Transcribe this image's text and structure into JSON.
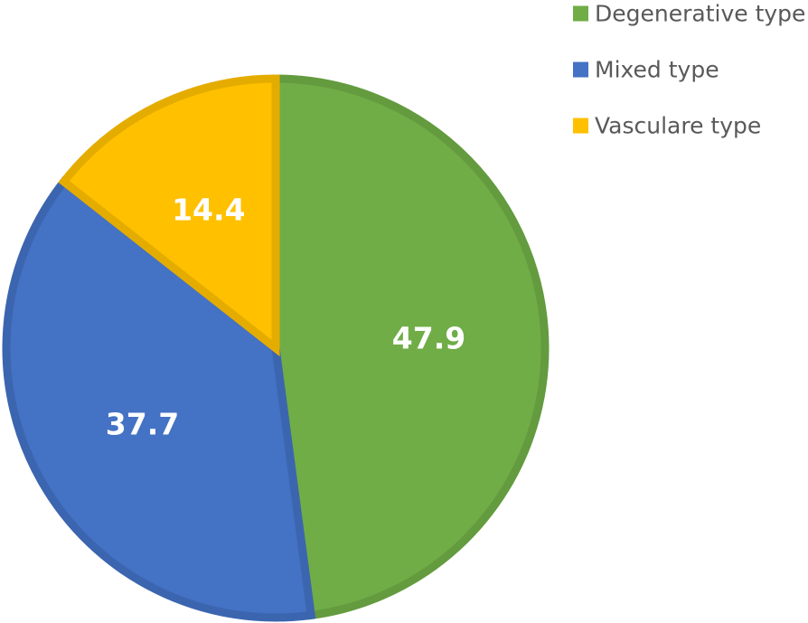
{
  "chart_data": {
    "type": "pie",
    "categories": [
      "Degenerative type",
      "Mixed type",
      "Vasculare type"
    ],
    "values": [
      47.9,
      37.7,
      14.4
    ],
    "data_labels": [
      "47.9",
      "37.7",
      "14.4"
    ],
    "colors": {
      "Degenerative type": "#70AD47",
      "Mixed type": "#4472C4",
      "Vasculare type": "#FFC000"
    },
    "border_colors": {
      "Degenerative type": "#639B3E",
      "Mixed type": "#3C65B0",
      "Vasculare type": "#E5AC00"
    },
    "legend": {
      "position": "top-right",
      "entries": [
        "Degenerative type",
        "Mixed type",
        "Vasculare type"
      ]
    },
    "title": "",
    "start_angle_deg": 0,
    "direction": "clockwise"
  }
}
